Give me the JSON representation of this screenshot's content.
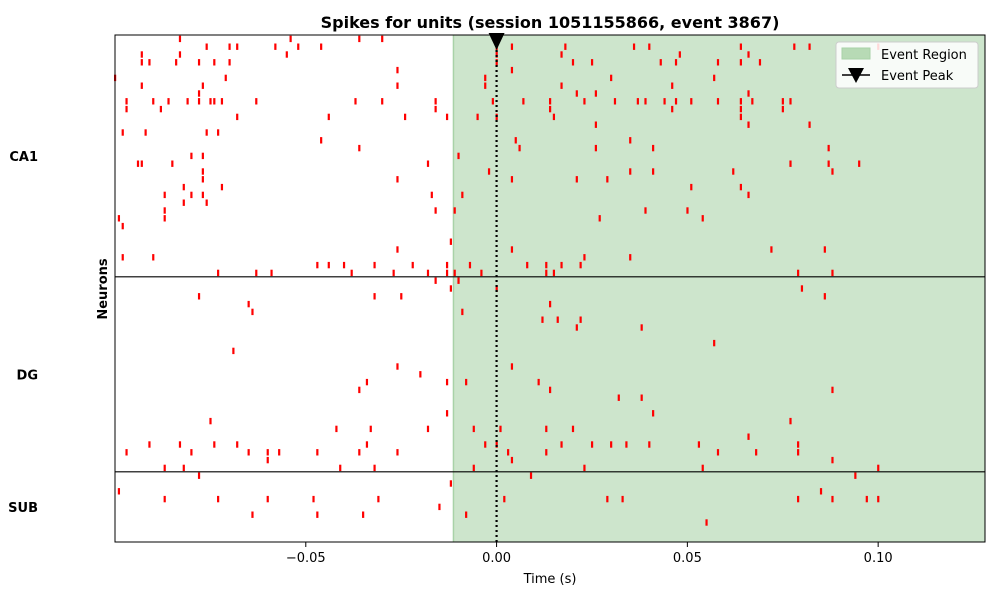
{
  "chart_data": {
    "type": "scatter",
    "title": "Spikes for units (session 1051155866, event 3867)",
    "xlabel": "Time (s)",
    "ylabel": "Neurons",
    "xlim": [
      -0.1,
      0.128
    ],
    "ylim": [
      0,
      65
    ],
    "xticks": [
      -0.05,
      0.0,
      0.05,
      0.1
    ],
    "xtick_labels": [
      "−0.05",
      "0.00",
      "0.05",
      "0.10"
    ],
    "event_region": [
      -0.0113,
      0.128
    ],
    "event_peak": 0.0,
    "grid": false,
    "legend_position": "top-right",
    "legend": [
      "Event Region",
      "Event Peak"
    ],
    "colors": {
      "spike": "#ff0000",
      "event_region": "#cde5cc",
      "event_region_edge": "#a9d2a8",
      "legend_patch": "#b7dab5"
    },
    "regions": [
      {
        "name": "CA1",
        "row_range": [
          0,
          31
        ]
      },
      {
        "name": "DG",
        "row_range": [
          31,
          56
        ]
      },
      {
        "name": "SUB",
        "row_range": [
          56,
          65
        ]
      }
    ],
    "region_boundaries": [
      31,
      56
    ],
    "spikes": [
      [
        0,
        -0.083,
        -0.054,
        -0.036,
        -0.03
      ],
      [
        1,
        -0.076,
        -0.07,
        -0.068,
        -0.058,
        -0.052,
        -0.046,
        0.0,
        0.004,
        0.018,
        0.036,
        0.04,
        0.064,
        0.078,
        0.082,
        0.1
      ],
      [
        2,
        -0.093,
        -0.083,
        -0.055,
        0.0,
        0.017,
        0.048,
        0.066
      ],
      [
        3,
        -0.093,
        -0.091,
        -0.084,
        -0.078,
        -0.074,
        -0.07,
        0.0,
        0.02,
        0.025,
        0.043,
        0.047,
        0.058,
        0.064,
        0.069
      ],
      [
        4,
        -0.026,
        0.004
      ],
      [
        5,
        -0.1,
        -0.071,
        -0.003,
        0.03,
        0.057
      ],
      [
        6,
        -0.093,
        -0.077,
        -0.026,
        -0.003,
        0.017,
        0.046
      ],
      [
        7,
        -0.078,
        0.021,
        0.026,
        0.066
      ],
      [
        8,
        -0.097,
        -0.09,
        -0.086,
        -0.081,
        -0.078,
        -0.075,
        -0.074,
        -0.072,
        -0.063,
        -0.037,
        -0.03,
        -0.016,
        -0.001,
        0.007,
        0.014,
        0.023,
        0.031,
        0.037,
        0.039,
        0.044,
        0.047,
        0.051,
        0.058,
        0.064,
        0.067,
        0.075,
        0.077
      ],
      [
        9,
        -0.097,
        -0.088,
        -0.016,
        0.014,
        0.046,
        0.064,
        0.075
      ],
      [
        10,
        -0.068,
        -0.044,
        -0.024,
        -0.013,
        -0.005,
        0.0,
        0.015,
        0.064
      ],
      [
        11,
        0.026,
        0.066,
        0.082
      ],
      [
        12,
        -0.098,
        -0.092,
        -0.076,
        -0.073
      ],
      [
        13,
        -0.046,
        0.005,
        0.035
      ],
      [
        14,
        -0.036,
        0.006,
        0.026,
        0.041,
        0.087
      ],
      [
        15,
        -0.08,
        -0.077,
        -0.01
      ],
      [
        16,
        -0.094,
        -0.093,
        -0.085,
        -0.018,
        0.077,
        0.087,
        0.095
      ],
      [
        17,
        -0.077,
        -0.002,
        0.035,
        0.041,
        0.062,
        0.088
      ],
      [
        18,
        -0.077,
        -0.026,
        0.004,
        0.021,
        0.029
      ],
      [
        19,
        -0.082,
        -0.072,
        0.051,
        0.064
      ],
      [
        20,
        -0.087,
        -0.08,
        -0.077,
        -0.017,
        -0.009,
        0.066
      ],
      [
        21,
        -0.082,
        -0.076
      ],
      [
        22,
        -0.087,
        -0.016,
        -0.011,
        0.039,
        0.05
      ],
      [
        23,
        -0.099,
        -0.087,
        0.027,
        0.054
      ],
      [
        24,
        -0.098
      ],
      [
        26,
        -0.012
      ],
      [
        27,
        -0.026,
        0.004,
        0.072,
        0.086
      ],
      [
        28,
        -0.098,
        -0.09,
        0.023,
        0.035
      ],
      [
        29,
        -0.047,
        -0.044,
        -0.04,
        -0.032,
        -0.022,
        -0.013,
        -0.007,
        0.008,
        0.013,
        0.017,
        0.022
      ],
      [
        30,
        -0.073,
        -0.063,
        -0.059,
        -0.038,
        -0.027,
        -0.018,
        -0.013,
        -0.011,
        -0.004,
        0.013,
        0.015,
        0.079,
        0.088
      ],
      [
        31,
        -0.016,
        -0.01
      ],
      [
        32,
        -0.012,
        0.0,
        0.08
      ],
      [
        33,
        -0.078,
        -0.032,
        -0.025,
        0.086
      ],
      [
        34,
        -0.065,
        0.014
      ],
      [
        35,
        -0.064,
        -0.009
      ],
      [
        36,
        0.012,
        0.016,
        0.022
      ],
      [
        37,
        0.021,
        0.038
      ],
      [
        39,
        0.057
      ],
      [
        40,
        -0.069
      ],
      [
        42,
        -0.026,
        0.004
      ],
      [
        43,
        -0.02
      ],
      [
        44,
        -0.034,
        -0.013,
        -0.008,
        0.011
      ],
      [
        45,
        -0.036,
        0.014,
        0.088
      ],
      [
        46,
        0.032,
        0.038
      ],
      [
        48,
        -0.013,
        0.041
      ],
      [
        49,
        -0.075,
        0.077
      ],
      [
        50,
        -0.042,
        -0.033,
        -0.018,
        -0.006,
        0.001,
        0.013,
        0.02
      ],
      [
        51,
        0.066
      ],
      [
        52,
        -0.091,
        -0.083,
        -0.074,
        -0.068,
        -0.034,
        -0.003,
        0.0,
        0.017,
        0.025,
        0.03,
        0.034,
        0.04,
        0.053,
        0.079
      ],
      [
        53,
        -0.097,
        -0.08,
        -0.065,
        -0.06,
        -0.057,
        -0.047,
        -0.036,
        -0.026,
        0.003,
        0.013,
        0.058,
        0.068,
        0.079
      ],
      [
        54,
        -0.06,
        0.004,
        0.088
      ],
      [
        55,
        -0.087,
        -0.082,
        -0.041,
        -0.032,
        -0.006,
        0.023,
        0.054,
        0.1
      ],
      [
        56,
        -0.078,
        0.009,
        0.094
      ],
      [
        57,
        -0.012
      ],
      [
        58,
        -0.099,
        0.085
      ],
      [
        59,
        -0.087,
        -0.073,
        -0.06,
        -0.048,
        -0.031,
        0.002,
        0.029,
        0.033,
        0.079,
        0.088,
        0.097,
        0.1
      ],
      [
        60,
        -0.015
      ],
      [
        61,
        -0.064,
        -0.047,
        -0.035,
        -0.008
      ],
      [
        62,
        0.055
      ]
    ]
  }
}
